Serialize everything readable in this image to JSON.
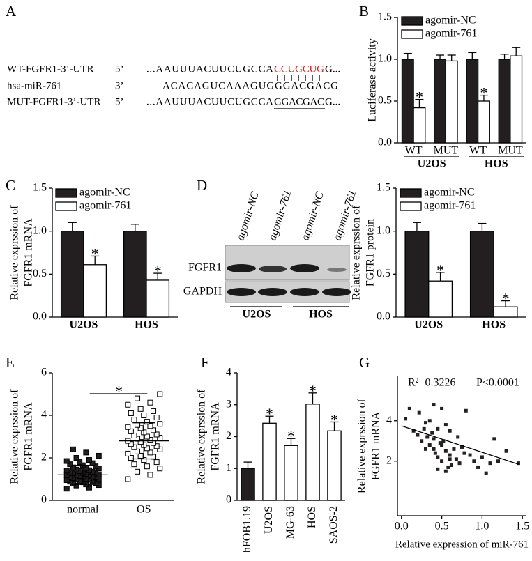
{
  "panel_labels": [
    "A",
    "B",
    "C",
    "D",
    "E",
    "F",
    "G"
  ],
  "panel_a": {
    "rows": [
      {
        "name": "WT-FGFR1-3’-UTR",
        "end": "5’",
        "seq": "...AAUUUACUUCUGCCA",
        "site": "CCUGCUG",
        "tail": "G..."
      },
      {
        "name": "hsa-miR-761",
        "end": "3’",
        "seq": "ACACAGUCAAAGUGGGACGACG"
      },
      {
        "name": "MUT-FGFR1-3’-UTR",
        "end": "5’",
        "seq": "...AAUUUACUUCUGCCA",
        "site": "GGACGAC",
        "tail": "G..."
      }
    ]
  },
  "blot": {
    "lanes": [
      "agomir-NC",
      "agomir-761",
      "agomir-NC",
      "agomir-761"
    ],
    "rows": [
      "FGFR1",
      "GAPDH"
    ],
    "groups": [
      "U2OS",
      "HOS"
    ]
  },
  "chart_data": [
    {
      "type": "bar",
      "ylabel": "Luciferase activity",
      "categories": [
        "WT",
        "MUT",
        "WT",
        "MUT"
      ],
      "groups": [
        "U2OS",
        "HOS"
      ],
      "ylim": [
        0,
        1.5
      ],
      "yticks": [
        {
          "value": 0,
          "label": "0.0"
        },
        0.5,
        {
          "value": 1,
          "label": "1.0"
        },
        {
          "value": 1.5,
          "label": "1.5"
        }
      ],
      "series": [
        {
          "name": "agomir-NC",
          "color": "#231f20",
          "values": [
            1.0,
            1.0,
            1.0,
            1.0
          ],
          "errors": [
            0.07,
            0.05,
            0.08,
            0.06
          ]
        },
        {
          "name": "agomir-761",
          "color": "#ffffff",
          "values": [
            0.42,
            0.98,
            0.5,
            1.04
          ],
          "errors": [
            0.1,
            0.07,
            0.07,
            0.1
          ],
          "significance": [
            "*",
            null,
            "*",
            null
          ]
        }
      ]
    },
    {
      "type": "bar",
      "ylabel": [
        "Relative exprssion of",
        "FGFR1 mRNA"
      ],
      "categories": [
        "U2OS",
        "HOS"
      ],
      "ylim": [
        0,
        1.5
      ],
      "yticks": [
        {
          "value": 0,
          "label": "0.0"
        },
        0.5,
        {
          "value": 1,
          "label": "1.0"
        },
        {
          "value": 1.5,
          "label": "1.5"
        }
      ],
      "series": [
        {
          "name": "agomir-NC",
          "color": "#231f20",
          "values": [
            1.0,
            1.0
          ],
          "errors": [
            0.1,
            0.08
          ]
        },
        {
          "name": "agomir-761",
          "color": "#ffffff",
          "values": [
            0.61,
            0.43
          ],
          "errors": [
            0.1,
            0.08
          ],
          "significance": [
            "*",
            "*"
          ]
        }
      ]
    },
    {
      "type": "bar",
      "ylabel": [
        "Relative exprssion of",
        "FGFR1 protein"
      ],
      "categories": [
        "U2OS",
        "HOS"
      ],
      "ylim": [
        0,
        1.5
      ],
      "yticks": [
        {
          "value": 0,
          "label": "0.0"
        },
        0.5,
        {
          "value": 1,
          "label": "1.0"
        },
        {
          "value": 1.5,
          "label": "1.5"
        }
      ],
      "series": [
        {
          "name": "agomir-NC",
          "color": "#231f20",
          "values": [
            1.0,
            1.0
          ],
          "errors": [
            0.1,
            0.09
          ]
        },
        {
          "name": "agomir-761",
          "color": "#ffffff",
          "values": [
            0.42,
            0.12
          ],
          "errors": [
            0.1,
            0.07
          ],
          "significance": [
            "*",
            "*"
          ]
        }
      ]
    },
    {
      "type": "dot",
      "ylabel": [
        "Relative exprssion of",
        "FGFR1 mRNA"
      ],
      "categories": [
        "normal",
        "OS"
      ],
      "ylim": [
        0,
        6
      ],
      "yticks": [
        0,
        2,
        4,
        6
      ],
      "fills": [
        "#231f20",
        "#ffffff"
      ],
      "values": [
        [
          0.55,
          0.6,
          0.7,
          0.72,
          0.75,
          0.8,
          0.82,
          0.85,
          0.88,
          0.9,
          0.92,
          0.95,
          0.98,
          1.0,
          1.0,
          1.02,
          1.05,
          1.08,
          1.1,
          1.1,
          1.12,
          1.15,
          1.18,
          1.2,
          1.2,
          1.22,
          1.25,
          1.28,
          1.3,
          1.3,
          1.32,
          1.35,
          1.38,
          1.4,
          1.42,
          1.45,
          1.5,
          1.52,
          1.55,
          1.6,
          1.65,
          1.7,
          1.75,
          1.8,
          1.85,
          1.9,
          2.0,
          2.1,
          2.25,
          2.4
        ],
        [
          1.0,
          1.2,
          1.35,
          1.5,
          1.6,
          1.7,
          1.8,
          1.9,
          2.0,
          2.05,
          2.1,
          2.2,
          2.25,
          2.3,
          2.4,
          2.45,
          2.5,
          2.55,
          2.6,
          2.65,
          2.7,
          2.75,
          2.8,
          2.85,
          2.9,
          2.95,
          3.0,
          3.05,
          3.1,
          3.2,
          3.25,
          3.3,
          3.4,
          3.45,
          3.5,
          3.55,
          3.6,
          3.7,
          3.8,
          3.9,
          4.0,
          4.1,
          4.2,
          4.3,
          4.5,
          4.6,
          4.8,
          5.0
        ]
      ],
      "means": [
        1.2,
        2.8
      ],
      "sds": [
        0.45,
        0.85
      ],
      "significance": "*"
    },
    {
      "type": "bar",
      "ylabel": [
        "Relative exprssion of",
        "FGFR1 mRNA"
      ],
      "categories": [
        "hFOB1.19",
        "U2OS",
        "MG-63",
        "HOS",
        "SAOS-2"
      ],
      "ylim": [
        0,
        4
      ],
      "yticks": [
        0,
        1,
        2,
        3,
        4
      ],
      "values": [
        1.0,
        2.42,
        1.72,
        3.02,
        2.18
      ],
      "errors": [
        0.2,
        0.22,
        0.22,
        0.35,
        0.28
      ],
      "colors": [
        "#231f20",
        "#ffffff",
        "#ffffff",
        "#ffffff",
        "#ffffff"
      ],
      "significance": [
        null,
        "*",
        "*",
        "*",
        "*"
      ]
    },
    {
      "type": "scatter",
      "xlabel": "Relative expression of miR-761",
      "ylabel": [
        "Relative exprssion of",
        "FGFR1 mRNA"
      ],
      "annotations": [
        "R²=0.3226",
        "P<0.0001"
      ],
      "color": "#231f20",
      "xlim": [
        -0.05,
        1.55
      ],
      "xticks": [
        {
          "value": 0,
          "label": "0.0"
        },
        0.5,
        {
          "value": 1,
          "label": "1.0"
        },
        {
          "value": 1.5,
          "label": "1.5"
        }
      ],
      "ylim": [
        -0.7,
        6.2
      ],
      "yticks": [
        2,
        4
      ],
      "x": [
        0.05,
        0.1,
        0.15,
        0.2,
        0.22,
        0.25,
        0.28,
        0.3,
        0.3,
        0.32,
        0.35,
        0.35,
        0.38,
        0.4,
        0.4,
        0.42,
        0.45,
        0.45,
        0.48,
        0.5,
        0.5,
        0.52,
        0.55,
        0.55,
        0.58,
        0.6,
        0.6,
        0.62,
        0.65,
        0.68,
        0.7,
        0.72,
        0.75,
        0.78,
        0.8,
        0.85,
        0.9,
        0.95,
        1.0,
        1.05,
        1.1,
        1.15,
        1.2,
        1.3,
        1.45,
        0.45,
        0.5,
        0.55,
        0.6,
        0.4
      ],
      "y": [
        4.1,
        4.6,
        3.5,
        3.3,
        4.4,
        3.0,
        3.6,
        2.6,
        3.9,
        3.2,
        4.0,
        2.8,
        3.4,
        3.1,
        4.8,
        2.4,
        3.6,
        2.2,
        2.9,
        4.6,
        2.0,
        3.0,
        2.5,
        3.8,
        1.7,
        2.3,
        3.5,
        1.8,
        2.6,
        2.1,
        3.2,
        1.9,
        2.7,
        2.4,
        4.5,
        2.3,
        2.0,
        1.7,
        2.2,
        1.4,
        1.9,
        3.1,
        2.0,
        2.5,
        1.9,
        1.6,
        2.8,
        1.5,
        2.1,
        2.6
      ],
      "fit": {
        "intercept": 3.75,
        "slope": -1.31
      }
    }
  ]
}
